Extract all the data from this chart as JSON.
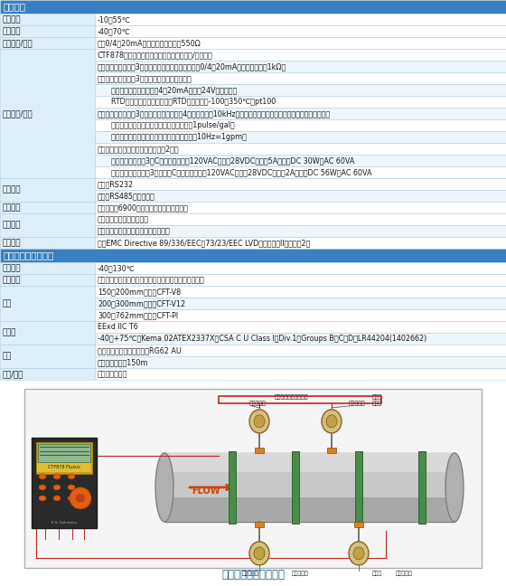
{
  "header1": "电子部件",
  "header2": "夹装式超声波传感器",
  "rows_electronic": [
    {
      "label": "工作温度",
      "values": [
        "-10～55℃"
      ]
    },
    {
      "label": "储存温度",
      "values": [
        "-40～70℃"
      ]
    },
    {
      "label": "标准输入/输出",
      "values": [
        "两个0/4～20mA隔离输出，最大负载550Ω"
      ]
    },
    {
      "label": "可选输入/输出",
      "values": [
        "CTF878有六个附加插槽，可配以下任何输入/输出板：",
        "模拟输出：可选多达3种附加输出板，每一个都有独立0/4～20mA输出，最大负载1kΩ。",
        "模拟输入：可选多达3种板实现以下任意一种类型",
        "      模拟输入板：带两个独立4～20mA输入和24V二线制供电",
        "      RTD输入板：带两个独立三线RTD输入；量程-100～350℃；pt100",
        "频率输出：可选多达3个频率输出板，每块有4个输出，最大10kHz，所有输出板允许软件选择下列两种模式的功能：",
        "      模式：每个脉冲代表参量的一个单位（例如1pulse/gal）",
        "      频率模式：脉冲频率对应于参数的量级（例如10Hz=1gpm）",
        "报警继电器：在下列任一种中最多选2块板",
        "      通用：继电器板有3个C断引继电器组；120VAC，最高28VDC，最大5A，最大DC 30W，AC 60VA",
        "      气密封：继电器板有3个气密封C断引继电器组；120VAC，最高28VDC，最大2A，最大DC 56W，AC 60VA"
      ]
    },
    {
      "label": "数字接口",
      "values": [
        "标准：RS232",
        "可选：RS485（多用户）"
      ]
    },
    {
      "label": "数据贮存",
      "values": [
        "内存容量：6900流量数据点（线性或循环）"
      ]
    },
    {
      "label": "显示功能",
      "values": [
        "图形界面，数字或图形格式",
        "可显示测量数据、存汇数据及诊断数据"
      ]
    },
    {
      "label": "欧洲标准",
      "values": [
        "符合EMC Directive 89/336/EEC，73/23/EEC LVD（安装目录II，污染度2）"
      ]
    }
  ],
  "rows_sensor": [
    {
      "label": "温度范围",
      "values": [
        "-40～130℃"
      ]
    },
    {
      "label": "夹具材质",
      "values": [
        "阳极化处理后的铝，或不锈钢，带钢性导轨、链条或钢带"
      ]
    },
    {
      "label": "安装",
      "values": [
        "150～200mm管线：CFT-V8",
        "200～300mm管线：CFT-V12",
        "300～762mm管线：CFT-PI"
      ]
    },
    {
      "label": "防爆区",
      "values": [
        "EExd IIC T6",
        "-40～+75℃，Kema 02ATEX2337X；CSA C U Class I，Div.1，Groups B，C，D，LR44204(1402662)"
      ]
    },
    {
      "label": "电缆",
      "values": [
        "标准：两对同轴电缆，型号RG62 AU",
        "可选：最大长度150m"
      ]
    },
    {
      "label": "温变/压变",
      "values": [
        "可根据要求提供"
      ]
    }
  ],
  "diagram_caption": "典型的仪表安装示意图",
  "header_bg": "#3a7fc1",
  "header_text": "#ffffff",
  "label_bg": "#ddeef8",
  "value_bg": "#ffffff",
  "border_color": "#b0cfe0",
  "text_color": "#1a1a1a",
  "diagram_border": "#b8b8b8",
  "diagram_bg": "#f8f8f8"
}
